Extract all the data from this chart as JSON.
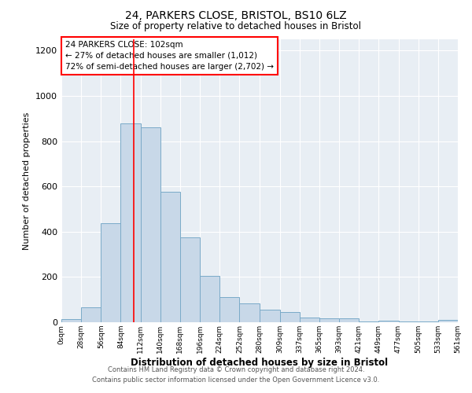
{
  "title": "24, PARKERS CLOSE, BRISTOL, BS10 6LZ",
  "subtitle": "Size of property relative to detached houses in Bristol",
  "xlabel": "Distribution of detached houses by size in Bristol",
  "ylabel": "Number of detached properties",
  "bar_color": "#c8d8e8",
  "bar_edge_color": "#7aaac8",
  "background_color": "#e8eef4",
  "grid_color": "white",
  "red_line_x": 102,
  "annotation_text": "24 PARKERS CLOSE: 102sqm\n← 27% of detached houses are smaller (1,012)\n72% of semi-detached houses are larger (2,702) →",
  "footer_line1": "Contains HM Land Registry data © Crown copyright and database right 2024.",
  "footer_line2": "Contains public sector information licensed under the Open Government Licence v3.0.",
  "bin_edges": [
    0,
    28,
    56,
    84,
    112,
    140,
    168,
    196,
    224,
    252,
    280,
    309,
    337,
    365,
    393,
    421,
    449,
    477,
    505,
    533,
    561
  ],
  "bin_counts": [
    14,
    67,
    437,
    880,
    860,
    576,
    376,
    205,
    110,
    83,
    56,
    45,
    21,
    18,
    16,
    3,
    8,
    3,
    3,
    10
  ],
  "ylim": [
    0,
    1250
  ],
  "yticks": [
    0,
    200,
    400,
    600,
    800,
    1000,
    1200
  ],
  "xtick_labels": [
    "0sqm",
    "28sqm",
    "56sqm",
    "84sqm",
    "112sqm",
    "140sqm",
    "168sqm",
    "196sqm",
    "224sqm",
    "252sqm",
    "280sqm",
    "309sqm",
    "337sqm",
    "365sqm",
    "393sqm",
    "421sqm",
    "449sqm",
    "477sqm",
    "505sqm",
    "533sqm",
    "561sqm"
  ]
}
